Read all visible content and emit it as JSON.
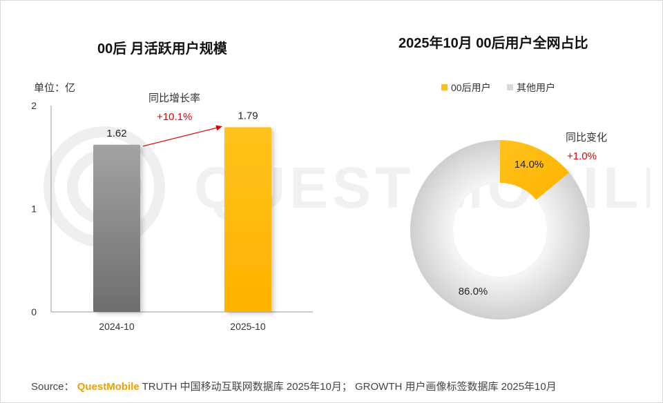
{
  "colors": {
    "gray_dark": "#6e6e6e",
    "gray_light": "#a3a3a3",
    "yellow": "#ffbf1a",
    "red": "#e00000",
    "donut_gray": "#d9d9d9"
  },
  "watermark_text": "QUEST MOBILE",
  "chart_data": [
    {
      "type": "bar",
      "title": "00后 月活跃用户规模",
      "unit_label": "单位：亿",
      "categories": [
        "2024-10",
        "2025-10"
      ],
      "values": [
        1.62,
        1.79
      ],
      "value_labels": [
        "1.62",
        "1.79"
      ],
      "ylim": [
        0,
        2
      ],
      "yticks": [
        "0",
        "1",
        "2"
      ],
      "growth_label": "同比增长率",
      "growth_value": "+10.1%",
      "xlabel": "",
      "ylabel": ""
    },
    {
      "type": "pie",
      "title": "2025年10月 00后用户全网占比",
      "labels": [
        "00后用户",
        "其他用户"
      ],
      "values": [
        14.0,
        86.0
      ],
      "value_labels": [
        "14.0%",
        "86.0%"
      ],
      "change_label": "同比变化",
      "change_value": "+1.0%",
      "legend": "top"
    }
  ],
  "source": {
    "prefix": "Source：",
    "brand": "QuestMobile",
    "text": "TRUTH 中国移动互联网数据库 2025年10月； GROWTH 用户画像标签数据库 2025年10月"
  }
}
